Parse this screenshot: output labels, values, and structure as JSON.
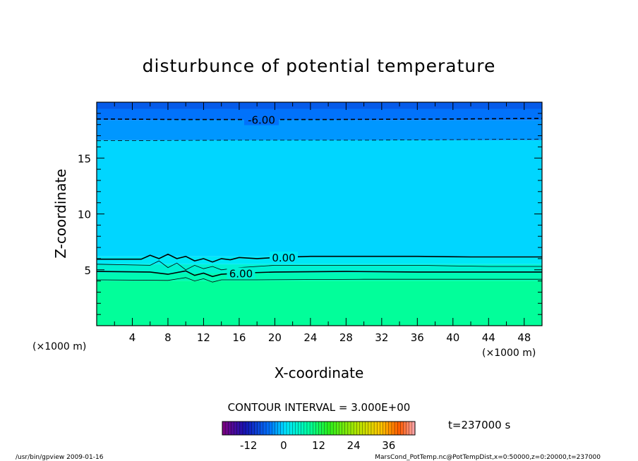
{
  "chart_data": {
    "type": "heatmap",
    "title": "disturbunce of potential temperature",
    "xlabel": "X-coordinate",
    "ylabel": "Z-coordinate",
    "x_unit": "(×1000 m)",
    "y_unit": "(×1000 m)",
    "xlim": [
      0,
      50
    ],
    "ylim": [
      0,
      20
    ],
    "x_ticks": [
      4,
      8,
      12,
      16,
      20,
      24,
      28,
      32,
      36,
      40,
      44,
      48
    ],
    "y_ticks": [
      5,
      10,
      15
    ],
    "contour_interval_text": "CONTOUR INTERVAL = 3.000E+00",
    "time_text": "t=237000 s",
    "colorbar": {
      "range": [
        -21,
        45
      ],
      "ticks": [
        -12,
        0,
        12,
        24,
        36
      ]
    },
    "field_bands": [
      {
        "z_from": 0,
        "z_to": 4.0,
        "value": 9
      },
      {
        "z_from": 4.0,
        "z_to": 4.7,
        "value": 7
      },
      {
        "z_from": 4.7,
        "z_to": 5.5,
        "value": 4.5
      },
      {
        "z_from": 5.5,
        "z_to": 6.2,
        "value": 1.5
      },
      {
        "z_from": 6.2,
        "z_to": 16.6,
        "value": 0
      },
      {
        "z_from": 16.6,
        "z_to": 18.4,
        "value": -3
      },
      {
        "z_from": 18.4,
        "z_to": 19.4,
        "value": -5
      },
      {
        "z_from": 19.4,
        "z_to": 20.0,
        "value": -7
      }
    ],
    "contours": [
      {
        "level": -6,
        "label": "-6.00",
        "style": "dashed",
        "label_x": 18.5,
        "points": [
          [
            0,
            18.5
          ],
          [
            10,
            18.45
          ],
          [
            25,
            18.45
          ],
          [
            40,
            18.5
          ],
          [
            50,
            18.55
          ]
        ]
      },
      {
        "level": -3,
        "label": "",
        "style": "dashed",
        "points": [
          [
            0,
            16.55
          ],
          [
            15,
            16.6
          ],
          [
            30,
            16.6
          ],
          [
            50,
            16.7
          ]
        ]
      },
      {
        "level": 0,
        "label": "0.00",
        "style": "solid",
        "label_x": 21,
        "points": [
          [
            0,
            5.95
          ],
          [
            5,
            5.95
          ],
          [
            6,
            6.3
          ],
          [
            7,
            6.0
          ],
          [
            8,
            6.4
          ],
          [
            9,
            6.0
          ],
          [
            10,
            6.2
          ],
          [
            11,
            5.8
          ],
          [
            12,
            6.0
          ],
          [
            13,
            5.7
          ],
          [
            14,
            6.0
          ],
          [
            15,
            5.9
          ],
          [
            16,
            6.1
          ],
          [
            18,
            6.0
          ],
          [
            20,
            6.1
          ],
          [
            24,
            6.2
          ],
          [
            30,
            6.2
          ],
          [
            36,
            6.2
          ],
          [
            42,
            6.15
          ],
          [
            50,
            6.15
          ]
        ]
      },
      {
        "level": 3,
        "label": "",
        "style": "solid",
        "points": [
          [
            0,
            5.5
          ],
          [
            6,
            5.4
          ],
          [
            7,
            5.8
          ],
          [
            8,
            5.2
          ],
          [
            9,
            5.6
          ],
          [
            10,
            5.0
          ],
          [
            11,
            5.4
          ],
          [
            12,
            5.1
          ],
          [
            13,
            5.3
          ],
          [
            14,
            5.0
          ],
          [
            16,
            5.2
          ],
          [
            20,
            5.4
          ],
          [
            28,
            5.4
          ],
          [
            36,
            5.4
          ],
          [
            44,
            5.3
          ],
          [
            50,
            5.3
          ]
        ]
      },
      {
        "level": 6,
        "label": "6.00",
        "style": "solid",
        "label_x": 16.2,
        "points": [
          [
            0,
            4.85
          ],
          [
            6,
            4.8
          ],
          [
            8,
            4.6
          ],
          [
            10,
            4.9
          ],
          [
            11,
            4.5
          ],
          [
            12,
            4.7
          ],
          [
            13,
            4.4
          ],
          [
            14,
            4.6
          ],
          [
            16,
            4.7
          ],
          [
            20,
            4.8
          ],
          [
            28,
            4.85
          ],
          [
            36,
            4.8
          ],
          [
            44,
            4.8
          ],
          [
            50,
            4.8
          ]
        ]
      },
      {
        "level": 9,
        "label": "",
        "style": "solid",
        "points": [
          [
            0,
            4.1
          ],
          [
            8,
            4.05
          ],
          [
            10,
            4.3
          ],
          [
            11,
            4.0
          ],
          [
            12,
            4.2
          ],
          [
            13,
            3.9
          ],
          [
            14,
            4.1
          ],
          [
            18,
            4.1
          ],
          [
            30,
            4.15
          ],
          [
            50,
            4.15
          ]
        ]
      }
    ]
  },
  "footer": {
    "left": "/usr/bin/gpview   2009-01-16",
    "right": "MarsCond_PotTemp.nc@PotTempDist,x=0:50000,z=0:20000,t=237000"
  }
}
